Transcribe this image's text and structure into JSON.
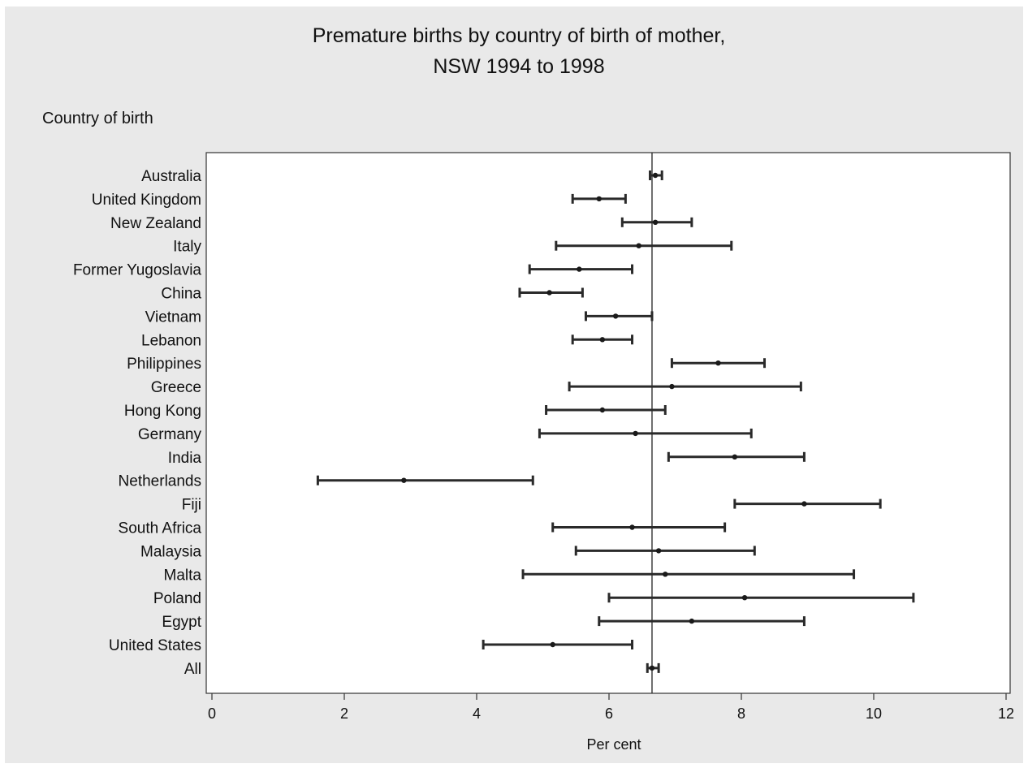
{
  "chart_data": {
    "type": "scatter",
    "title": "Premature births by country of birth of mother,",
    "subtitle": "NSW 1994 to 1998",
    "xlabel": "Per cent",
    "ylabel": "Country of birth",
    "xlim": [
      0,
      12
    ],
    "xticks": [
      "0",
      "2",
      "4",
      "6",
      "8",
      "10",
      "12"
    ],
    "reference_line": 6.65,
    "grid": false,
    "categories": [
      "Australia",
      "United Kingdom",
      "New Zealand",
      "Italy",
      "Former Yugoslavia",
      "China",
      "Vietnam",
      "Lebanon",
      "Philippines",
      "Greece",
      "Hong Kong",
      "Germany",
      "India",
      "Netherlands",
      "Fiji",
      "South Africa",
      "Malaysia",
      "Malta",
      "Poland",
      "Egypt",
      "United States",
      "All"
    ],
    "series": [
      {
        "values": [
          6.7,
          5.85,
          6.7,
          6.45,
          5.55,
          5.1,
          6.1,
          5.9,
          7.65,
          6.95,
          5.9,
          6.4,
          7.9,
          2.9,
          8.95,
          6.35,
          6.75,
          6.85,
          8.05,
          7.25,
          5.15,
          6.65
        ],
        "lower": [
          6.62,
          5.45,
          6.2,
          5.2,
          4.8,
          4.65,
          5.65,
          5.45,
          6.95,
          5.4,
          5.05,
          4.95,
          6.9,
          1.6,
          7.9,
          5.15,
          5.5,
          4.7,
          6.0,
          5.85,
          4.1,
          6.58
        ],
        "upper": [
          6.8,
          6.25,
          7.25,
          7.85,
          6.35,
          5.6,
          6.65,
          6.35,
          8.35,
          8.9,
          6.85,
          8.15,
          8.95,
          4.85,
          10.1,
          7.75,
          8.2,
          9.7,
          10.6,
          8.95,
          6.35,
          6.75
        ]
      }
    ]
  }
}
